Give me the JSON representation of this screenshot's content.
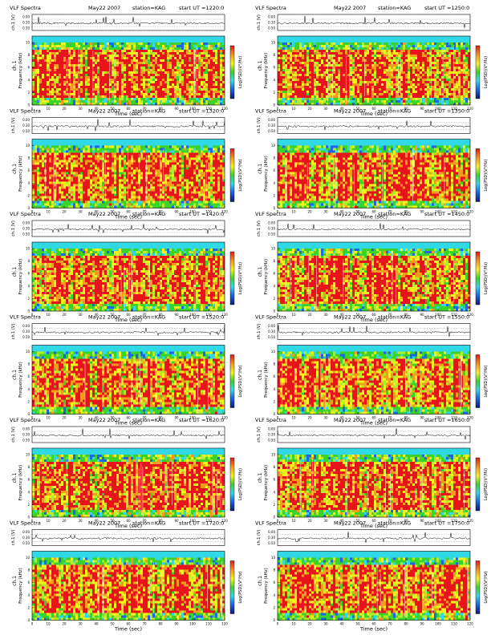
{
  "header": {
    "title": "VLF Spectra",
    "date": "May22 2007",
    "station": "station=KAG",
    "start_prefix": "start  UT  ="
  },
  "axes": {
    "xlabel": "Time  (sec)",
    "ylabel_freq": "Frequency  (kHz)",
    "ylabel_signal": "ch.1 (V)",
    "ylabel_ch": "ch.1",
    "colorbar_label": "Log(PSD)(V²/Hz)",
    "xticks": [
      "0",
      "10",
      "20",
      "30",
      "40",
      "50",
      "60",
      "70",
      "80",
      "90",
      "100",
      "110",
      "120"
    ],
    "yticks_freq": [
      "0",
      "2",
      "4",
      "6",
      "8",
      "10"
    ],
    "yticks_signal": [
      "0.00",
      "0.30",
      "0.50"
    ]
  },
  "palette": {
    "red": "#e8141c",
    "orange": "#f59b1d",
    "yellow": "#f3f21c",
    "lime": "#b4ec2a",
    "green": "#3bd32a",
    "cyan": "#31d9e6",
    "blue": "#1e66e8",
    "navy": "#0a1a7a"
  },
  "chart_data": [
    {
      "type": "heatmap",
      "start_ut": "1220:0",
      "xlim": [
        0,
        120
      ],
      "ylim": [
        0,
        10
      ]
    },
    {
      "type": "heatmap",
      "start_ut": "1250:0",
      "xlim": [
        0,
        120
      ],
      "ylim": [
        0,
        10
      ]
    },
    {
      "type": "heatmap",
      "start_ut": "1320:0",
      "xlim": [
        0,
        120
      ],
      "ylim": [
        0,
        10
      ]
    },
    {
      "type": "heatmap",
      "start_ut": "1350:0",
      "xlim": [
        0,
        120
      ],
      "ylim": [
        0,
        10
      ]
    },
    {
      "type": "heatmap",
      "start_ut": "1420:0",
      "xlim": [
        0,
        120
      ],
      "ylim": [
        0,
        10
      ]
    },
    {
      "type": "heatmap",
      "start_ut": "1450:0",
      "xlim": [
        0,
        120
      ],
      "ylim": [
        0,
        10
      ]
    },
    {
      "type": "heatmap",
      "start_ut": "1520:0",
      "xlim": [
        0,
        120
      ],
      "ylim": [
        0,
        10
      ]
    },
    {
      "type": "heatmap",
      "start_ut": "1550:0",
      "xlim": [
        0,
        120
      ],
      "ylim": [
        0,
        10
      ]
    },
    {
      "type": "heatmap",
      "start_ut": "1620:0",
      "xlim": [
        0,
        120
      ],
      "ylim": [
        0,
        10
      ]
    },
    {
      "type": "heatmap",
      "start_ut": "1650:0",
      "xlim": [
        0,
        120
      ],
      "ylim": [
        0,
        10
      ]
    },
    {
      "type": "heatmap",
      "start_ut": "1720:0",
      "xlim": [
        0,
        120
      ],
      "ylim": [
        0,
        10
      ]
    },
    {
      "type": "heatmap",
      "start_ut": "1750:0",
      "xlim": [
        0,
        120
      ],
      "ylim": [
        0,
        10
      ]
    }
  ]
}
